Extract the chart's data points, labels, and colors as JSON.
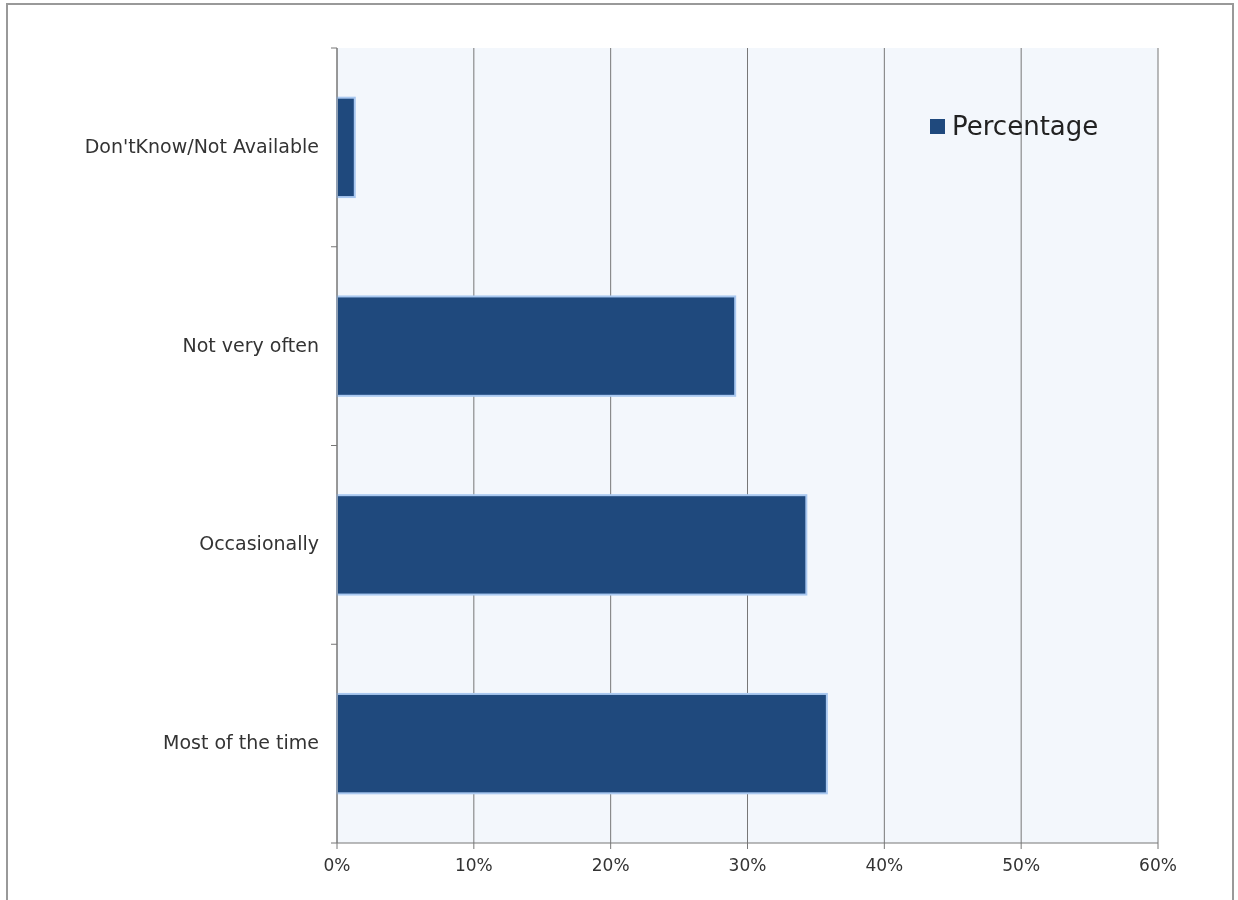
{
  "chart_data": {
    "type": "bar",
    "orientation": "horizontal",
    "categories": [
      "Don'tKnow/Not Available",
      "Not very often",
      "Occasionally",
      "Most of the time"
    ],
    "series": [
      {
        "name": "Percentage",
        "color": "#1f497d",
        "values": [
          1.3,
          29.1,
          34.3,
          35.8
        ]
      }
    ],
    "xlim": [
      0,
      60
    ],
    "xticks": [
      {
        "value": 0,
        "label": "0%"
      },
      {
        "value": 10,
        "label": "10%"
      },
      {
        "value": 20,
        "label": "20%"
      },
      {
        "value": 30,
        "label": "30%"
      },
      {
        "value": 40,
        "label": "40%"
      },
      {
        "value": 50,
        "label": "50%"
      },
      {
        "value": 60,
        "label": "60%"
      }
    ],
    "grid": "x",
    "legend": "top right"
  }
}
